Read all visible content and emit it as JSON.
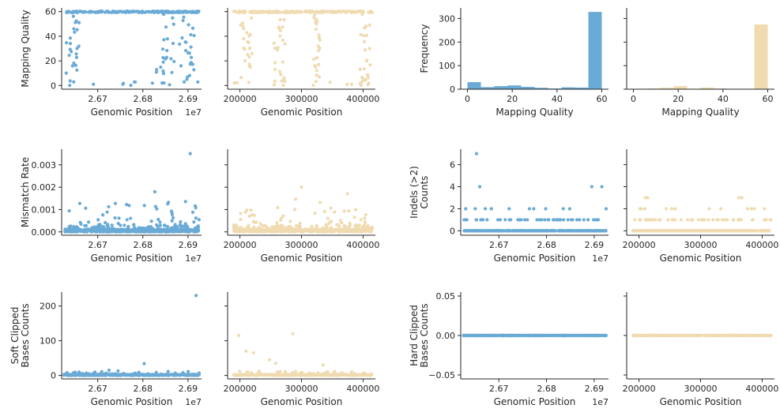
{
  "colors": {
    "genomic": "#6aaad6",
    "sample": "#f0dbb1"
  },
  "chart_data": [
    {
      "id": "mq-pos-a",
      "type": "scatter",
      "color": "#6aaad6",
      "xlabel": "Genomic Position",
      "ylabel": "Mapping Quality",
      "x_offset_label": "1e7",
      "xlim": [
        26620000,
        26930000
      ],
      "ylim": [
        -3,
        63
      ],
      "xticks": [
        26700000,
        26800000,
        26900000
      ],
      "xtick_labels": [
        "2.67",
        "2.68",
        "2.69"
      ],
      "yticks": [
        0,
        20,
        40,
        60
      ],
      "ytick_labels": [
        "0",
        "20",
        "40",
        "60"
      ],
      "generated": {
        "mode": "mq",
        "xmin": 26625000,
        "xmax": 26925000,
        "seed": 11,
        "clusters": [
          [
            26630000,
            26660000
          ],
          [
            26830000,
            26870000
          ],
          [
            26880000,
            26915000
          ]
        ]
      }
    },
    {
      "id": "mq-pos-b",
      "type": "scatter",
      "color": "#f0dbb1",
      "xlabel": "Genomic Position",
      "ylabel": "",
      "xlim": [
        180000,
        420000
      ],
      "ylim": [
        -3,
        63
      ],
      "xticks": [
        200000,
        300000,
        400000
      ],
      "xtick_labels": [
        "200000",
        "300000",
        "400000"
      ],
      "yticks": [
        0,
        20,
        40,
        60
      ],
      "ytick_labels": [],
      "generated": {
        "mode": "mq",
        "xmin": 190000,
        "xmax": 415000,
        "seed": 23,
        "clusters": [
          [
            200000,
            225000
          ],
          [
            255000,
            275000
          ],
          [
            320000,
            330000
          ],
          [
            395000,
            412000
          ]
        ]
      }
    },
    {
      "id": "mq-hist-a",
      "type": "bar",
      "color": "#6aaad6",
      "xlabel": "Mapping Quality",
      "ylabel": "Frequency",
      "xlim": [
        -3,
        63
      ],
      "ylim": [
        0,
        345
      ],
      "xticks": [
        0,
        20,
        40,
        60
      ],
      "xtick_labels": [
        "0",
        "20",
        "40",
        "60"
      ],
      "yticks": [
        0,
        100,
        200,
        300
      ],
      "ytick_labels": [
        "0",
        "100",
        "200",
        "300"
      ],
      "bin_edges": [
        0,
        6,
        12,
        18,
        24,
        30,
        36,
        42,
        48,
        54,
        60
      ],
      "values": [
        30,
        9,
        13,
        16,
        10,
        6,
        3,
        8,
        7,
        328
      ]
    },
    {
      "id": "mq-hist-b",
      "type": "bar",
      "color": "#f0dbb1",
      "xlabel": "Mapping Quality",
      "ylabel": "",
      "xlim": [
        -3,
        63
      ],
      "ylim": [
        0,
        345
      ],
      "xticks": [
        0,
        20,
        40,
        60
      ],
      "xtick_labels": [
        "0",
        "20",
        "40",
        "60"
      ],
      "yticks": [
        0,
        100,
        200,
        300
      ],
      "ytick_labels": [],
      "bin_edges": [
        0,
        6,
        12,
        18,
        24,
        30,
        36,
        42,
        48,
        54,
        60
      ],
      "values": [
        0,
        3,
        6,
        13,
        2,
        7,
        3,
        1,
        0,
        275
      ]
    },
    {
      "id": "mm-pos-a",
      "type": "scatter",
      "color": "#6aaad6",
      "xlabel": "Genomic Position",
      "ylabel": "Mismatch Rate",
      "x_offset_label": "1e7",
      "xlim": [
        26620000,
        26930000
      ],
      "ylim": [
        -0.00015,
        0.0037
      ],
      "xticks": [
        26700000,
        26800000,
        26900000
      ],
      "xtick_labels": [
        "2.67",
        "2.68",
        "2.69"
      ],
      "yticks": [
        0,
        0.001,
        0.002,
        0.003
      ],
      "ytick_labels": [
        "0.000",
        "0.001",
        "0.002",
        "0.003"
      ],
      "generated": {
        "mode": "mismatch",
        "xmin": 26625000,
        "xmax": 26925000,
        "seed": 37,
        "peak": 0.0035,
        "peak_x": 26905000
      }
    },
    {
      "id": "mm-pos-b",
      "type": "scatter",
      "color": "#f0dbb1",
      "xlabel": "Genomic Position",
      "ylabel": "",
      "xlim": [
        180000,
        420000
      ],
      "ylim": [
        -0.00015,
        0.0037
      ],
      "xticks": [
        200000,
        300000,
        400000
      ],
      "xtick_labels": [
        "200000",
        "300000",
        "400000"
      ],
      "yticks": [
        0,
        0.001,
        0.002,
        0.003
      ],
      "ytick_labels": [],
      "generated": {
        "mode": "mismatch",
        "xmin": 190000,
        "xmax": 415000,
        "seed": 41,
        "peak": 0.002,
        "peak_x": 300000
      }
    },
    {
      "id": "indel-pos-a",
      "type": "scatter",
      "color": "#6aaad6",
      "xlabel": "Genomic Position",
      "ylabel": "Indels (>2)\nCounts",
      "x_offset_label": "1e7",
      "xlim": [
        26620000,
        26930000
      ],
      "ylim": [
        -0.4,
        7.4
      ],
      "xticks": [
        26700000,
        26800000,
        26900000
      ],
      "xtick_labels": [
        "2.67",
        "2.68",
        "2.69"
      ],
      "yticks": [
        0,
        2,
        4,
        6
      ],
      "ytick_labels": [
        "0",
        "2",
        "4",
        "6"
      ],
      "generated": {
        "mode": "counts",
        "xmin": 26625000,
        "xmax": 26925000,
        "seed": 53,
        "highs": [
          [
            26653000,
            7
          ],
          [
            26660000,
            4
          ],
          [
            26895000,
            4
          ],
          [
            26916000,
            4
          ]
        ]
      }
    },
    {
      "id": "indel-pos-b",
      "type": "scatter",
      "color": "#f0dbb1",
      "xlabel": "Genomic Position",
      "ylabel": "",
      "xlim": [
        180000,
        420000
      ],
      "ylim": [
        -0.4,
        7.4
      ],
      "xticks": [
        200000,
        300000,
        400000
      ],
      "xtick_labels": [
        "200000",
        "300000",
        "400000"
      ],
      "yticks": [
        0,
        2,
        4,
        6
      ],
      "ytick_labels": [],
      "generated": {
        "mode": "counts",
        "xmin": 190000,
        "xmax": 415000,
        "seed": 59,
        "highs": [
          [
            210000,
            3
          ],
          [
            214000,
            3
          ],
          [
            362000,
            3
          ],
          [
            367000,
            3
          ]
        ]
      }
    },
    {
      "id": "soft-pos-a",
      "type": "scatter",
      "color": "#6aaad6",
      "xlabel": "Genomic Position",
      "ylabel": "Soft Clipped\nBases Counts",
      "x_offset_label": "1e7",
      "xlim": [
        26620000,
        26930000
      ],
      "ylim": [
        -10,
        240
      ],
      "xticks": [
        26700000,
        26800000,
        26900000
      ],
      "xtick_labels": [
        "2.67",
        "2.68",
        "2.69"
      ],
      "yticks": [
        0,
        100,
        200
      ],
      "ytick_labels": [
        "0",
        "100",
        "200"
      ],
      "generated": {
        "mode": "soft",
        "xmin": 26625000,
        "xmax": 26925000,
        "seed": 67,
        "highs": [
          [
            26918000,
            230
          ],
          [
            26803000,
            34
          ],
          [
            26725000,
            15
          ],
          [
            26745000,
            13
          ]
        ]
      }
    },
    {
      "id": "soft-pos-b",
      "type": "scatter",
      "color": "#f0dbb1",
      "xlabel": "Genomic Position",
      "ylabel": "",
      "xlim": [
        180000,
        420000
      ],
      "ylim": [
        -10,
        240
      ],
      "xticks": [
        200000,
        300000,
        400000
      ],
      "xtick_labels": [
        "200000",
        "300000",
        "400000"
      ],
      "yticks": [
        0,
        100,
        200
      ],
      "ytick_labels": [],
      "generated": {
        "mode": "soft",
        "xmin": 190000,
        "xmax": 415000,
        "seed": 71,
        "highs": [
          [
            198000,
            115
          ],
          [
            286000,
            120
          ],
          [
            210000,
            70
          ],
          [
            222000,
            65
          ],
          [
            248000,
            45
          ],
          [
            258000,
            35
          ],
          [
            335000,
            30
          ]
        ]
      }
    },
    {
      "id": "hard-pos-a",
      "type": "scatter",
      "color": "#6aaad6",
      "xlabel": "Genomic Position",
      "ylabel": "Hard Clipped\nBases Counts",
      "x_offset_label": "1e7",
      "xlim": [
        26620000,
        26930000
      ],
      "ylim": [
        -0.055,
        0.055
      ],
      "xticks": [
        26700000,
        26800000,
        26900000
      ],
      "xtick_labels": [
        "2.67",
        "2.68",
        "2.69"
      ],
      "yticks": [
        -0.05,
        0,
        0.05
      ],
      "ytick_labels": [
        "−0.05",
        "0.00",
        "0.05"
      ],
      "generated": {
        "mode": "zero",
        "xmin": 26625000,
        "xmax": 26925000,
        "seed": 79
      }
    },
    {
      "id": "hard-pos-b",
      "type": "scatter",
      "color": "#f0dbb1",
      "xlabel": "Genomic Position",
      "ylabel": "",
      "xlim": [
        180000,
        420000
      ],
      "ylim": [
        -0.055,
        0.055
      ],
      "xticks": [
        200000,
        300000,
        400000
      ],
      "xtick_labels": [
        "200000",
        "300000",
        "400000"
      ],
      "yticks": [
        -0.05,
        0,
        0.05
      ],
      "ytick_labels": [],
      "generated": {
        "mode": "zero",
        "xmin": 190000,
        "xmax": 415000,
        "seed": 83
      }
    }
  ]
}
